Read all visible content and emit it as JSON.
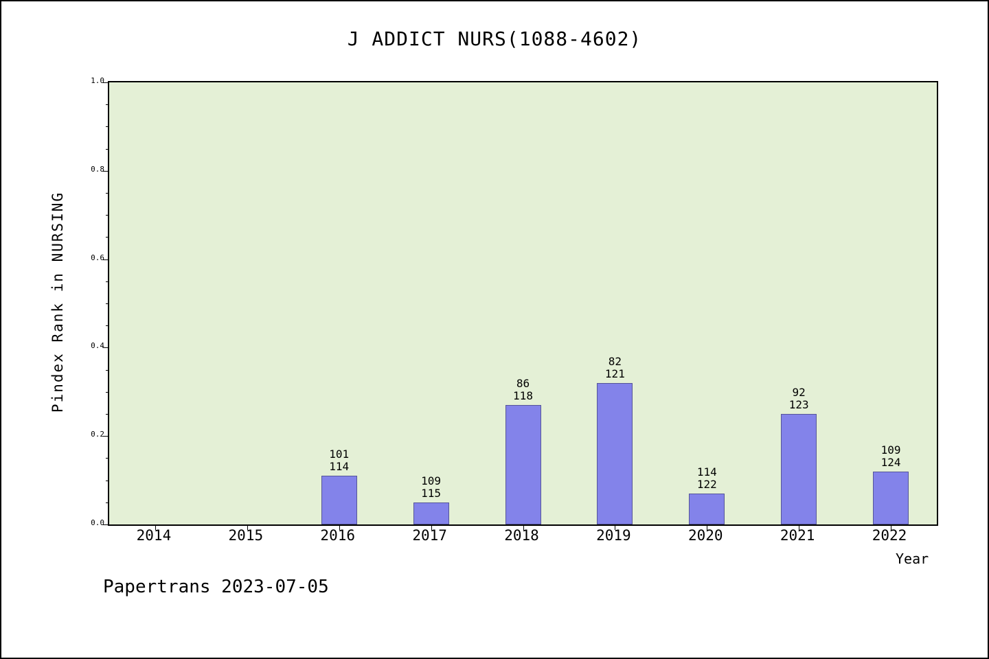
{
  "title": "J ADDICT NURS(1088-4602)",
  "footer": "Papertrans 2023-07-05",
  "chart_data": {
    "type": "bar",
    "title": "J ADDICT NURS(1088-4602)",
    "xlabel": "Year",
    "ylabel": "Pindex Rank in NURSING",
    "ylim": [
      0.0,
      1.0
    ],
    "yticks": [
      "0.0",
      "0.2",
      "0.4",
      "0.6",
      "0.8",
      "1.0"
    ],
    "grid": false,
    "legend_position": "none",
    "plot_bg_color": "#e4f0d6",
    "bar_color": "#8383ea",
    "categories": [
      "2014",
      "2015",
      "2016",
      "2017",
      "2018",
      "2019",
      "2020",
      "2021",
      "2022"
    ],
    "values": [
      null,
      null,
      0.11,
      0.05,
      0.27,
      0.32,
      0.07,
      0.25,
      0.12
    ],
    "annotations": [
      null,
      null,
      {
        "rank": "101",
        "total": "114"
      },
      {
        "rank": "109",
        "total": "115"
      },
      {
        "rank": "86",
        "total": "118"
      },
      {
        "rank": "82",
        "total": "121"
      },
      {
        "rank": "114",
        "total": "122"
      },
      {
        "rank": "92",
        "total": "123"
      },
      {
        "rank": "109",
        "total": "124"
      }
    ]
  }
}
